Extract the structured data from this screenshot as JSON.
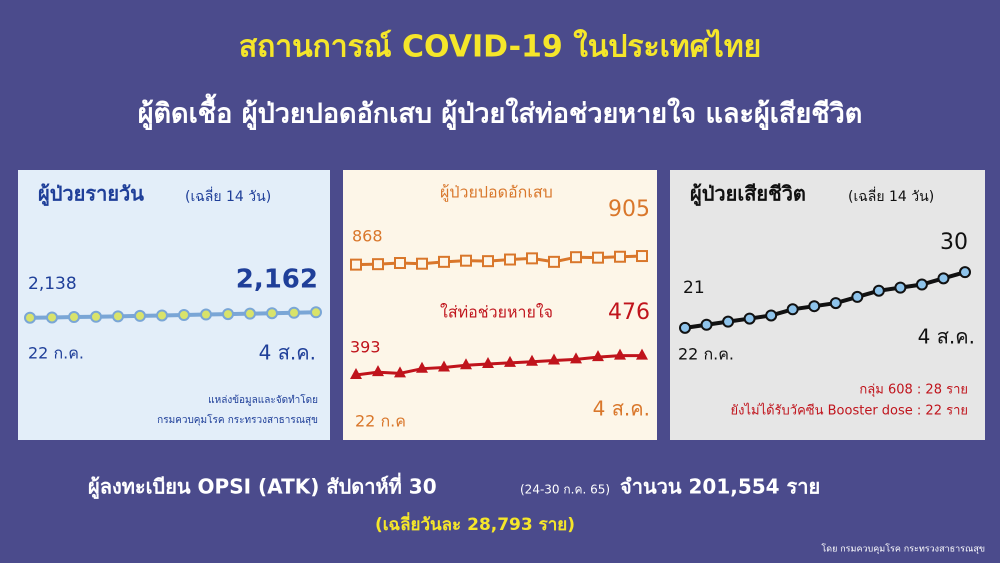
{
  "header": {
    "title": "สถานการณ์ COVID-19 ในประเทศไทย",
    "subtitle": "ผู้ติดเชื้อ ผู้ป่วยปอดอักเสบ ผู้ป่วยใส่ท่อช่วยหายใจ และผู้เสียชีวิต"
  },
  "chart_data": [
    {
      "type": "line",
      "title": "ผู้ป่วยรายวัน",
      "subtitle": "(เฉลี่ย 14 วัน)",
      "categories": [
        "22 ก.ค.",
        null,
        null,
        null,
        null,
        null,
        null,
        null,
        null,
        null,
        null,
        null,
        null,
        "4 ส.ค."
      ],
      "values": [
        2138,
        2139,
        2141,
        2142,
        2144,
        2146,
        2148,
        2150,
        2152,
        2154,
        2156,
        2158,
        2160,
        2162
      ],
      "value_labels": [
        "2,138",
        null,
        null,
        null,
        null,
        null,
        null,
        null,
        null,
        null,
        null,
        null,
        null,
        "2,162"
      ],
      "color": "#7aa6d6",
      "notes": [
        "แหล่งข้อมูลและจัดทำโดย",
        "กรมควบคุมโรค กระทรวงสาธารณสุข"
      ]
    },
    {
      "type": "line",
      "categories": [
        "22 ก.ค",
        null,
        null,
        null,
        null,
        null,
        null,
        null,
        null,
        null,
        null,
        null,
        null,
        "4 ส.ค."
      ],
      "series": [
        {
          "name": "ผู้ป่วยปอดอักเสบ",
          "color": "#d9772b",
          "values": [
            868,
            870,
            875,
            872,
            880,
            885,
            883,
            890,
            895,
            880,
            900,
            898,
            902,
            905
          ]
        },
        {
          "name": "ใส่ท่อช่วยหายใจ",
          "color": "#c0141c",
          "values": [
            393,
            405,
            400,
            420,
            425,
            435,
            440,
            445,
            450,
            455,
            460,
            470,
            476,
            476
          ]
        }
      ]
    },
    {
      "type": "line",
      "title": "ผู้ป่วยเสียชีวิต",
      "subtitle": "(เฉลี่ย 14 วัน)",
      "categories": [
        "22 ก.ค.",
        null,
        null,
        null,
        null,
        null,
        null,
        null,
        null,
        null,
        null,
        null,
        null,
        "4 ส.ค."
      ],
      "values": [
        21,
        21.5,
        22,
        22.5,
        23,
        24,
        24.5,
        25,
        26,
        27,
        27.5,
        28,
        29,
        30
      ],
      "color": "#111111",
      "notes": [
        "กลุ่ม 608 : 28 ราย",
        "ยังไม่ได้รับวัคซีน Booster dose : 22 ราย"
      ]
    }
  ],
  "footer": {
    "line1": "ผู้ลงทะเบียน OPSI (ATK) สัปดาห์ที่ 30",
    "line1_dates": "(24-30 ก.ค. 65)",
    "line1_total": "จำนวน 201,554 ราย",
    "line2": "(เฉลี่ยวันละ 28,793 ราย)",
    "credit": "โดย กรมควบคุมโรค กระทรวงสาธารณสุข"
  }
}
